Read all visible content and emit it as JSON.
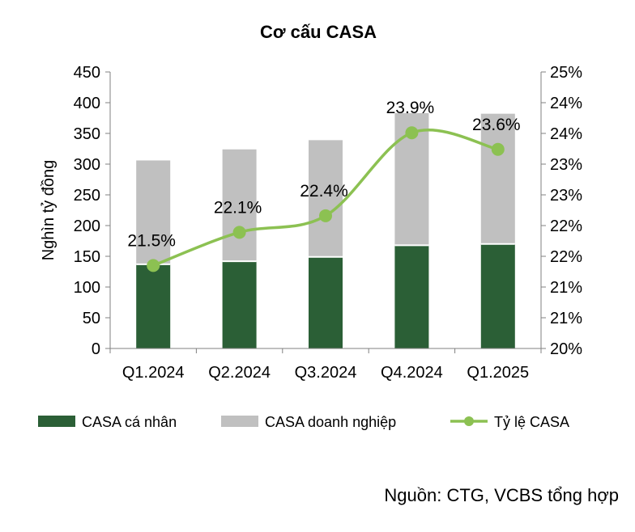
{
  "chart_data": {
    "type": "bar",
    "title": "Cơ cấu CASA",
    "ylabel": "Nghìn tỷ đồng",
    "categories": [
      "Q1.2024",
      "Q2.2024",
      "Q3.2024",
      "Q4.2024",
      "Q1.2025"
    ],
    "series": [
      {
        "name": "CASA cá nhân",
        "type": "bar",
        "stacked": true,
        "axis": "left",
        "color": "#2b5f36",
        "values": [
          137,
          142,
          149,
          168,
          170
        ]
      },
      {
        "name": "CASA doanh nghiệp",
        "type": "bar",
        "stacked": true,
        "axis": "left",
        "color": "#c0c0c0",
        "values": [
          169,
          182,
          190,
          215,
          212
        ]
      },
      {
        "name": "Tỷ lệ CASA",
        "type": "line",
        "axis": "right",
        "color": "#8cc152",
        "values": [
          21.5,
          22.1,
          22.4,
          23.9,
          23.6
        ],
        "data_labels": [
          "21.5%",
          "22.1%",
          "22.4%",
          "23.9%",
          "23.6%"
        ]
      }
    ],
    "ylim": [
      0,
      450
    ],
    "y_ticks": [
      "0",
      "50",
      "100",
      "150",
      "200",
      "250",
      "300",
      "350",
      "400",
      "450"
    ],
    "y2lim": [
      20,
      25
    ],
    "y2_ticks": [
      "20%",
      "21%",
      "21%",
      "22%",
      "22%",
      "23%",
      "23%",
      "24%",
      "24%",
      "25%"
    ],
    "legend": "bottom",
    "grid": false
  },
  "source": "Nguồn: CTG, VCBS tổng hợp"
}
